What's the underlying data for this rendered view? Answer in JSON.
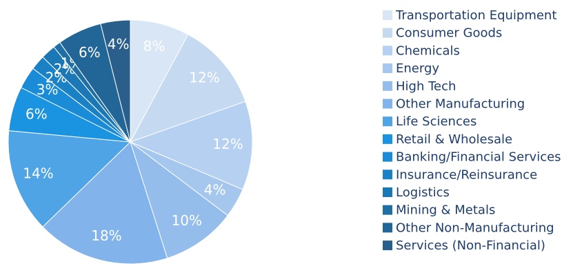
{
  "chart_data": {
    "type": "pie",
    "categories": [
      "Transportation Equipment",
      "Consumer Goods",
      "Chemicals",
      "Energy",
      "High Tech",
      "Other Manufacturing",
      "Life Sciences",
      "Retail & Wholesale",
      "Banking/Financial Services",
      "Insurance/Reinsurance",
      "Logistics",
      "Mining & Metals",
      "Other Non-Manufacturing",
      "Services (Non-Financial)"
    ],
    "values": [
      8,
      12,
      12,
      4,
      10,
      18,
      14,
      6,
      3,
      2,
      2,
      1,
      6,
      4
    ],
    "value_labels": [
      "8%",
      "12%",
      "12%",
      "4%",
      "10%",
      "18%",
      "14%",
      "6%",
      "3%",
      "2%",
      "2%",
      "1%",
      "6%",
      "4%"
    ],
    "colors": [
      "#d9e6f5",
      "#c5d9f1",
      "#b5d0f0",
      "#a5c7ee",
      "#94bdec",
      "#82b3ea",
      "#4fa4e6",
      "#1a94e0",
      "#1a8bd6",
      "#1b81c5",
      "#1c78b4",
      "#1f6fa5",
      "#226697",
      "#2a5f8c"
    ],
    "legend": "right"
  }
}
